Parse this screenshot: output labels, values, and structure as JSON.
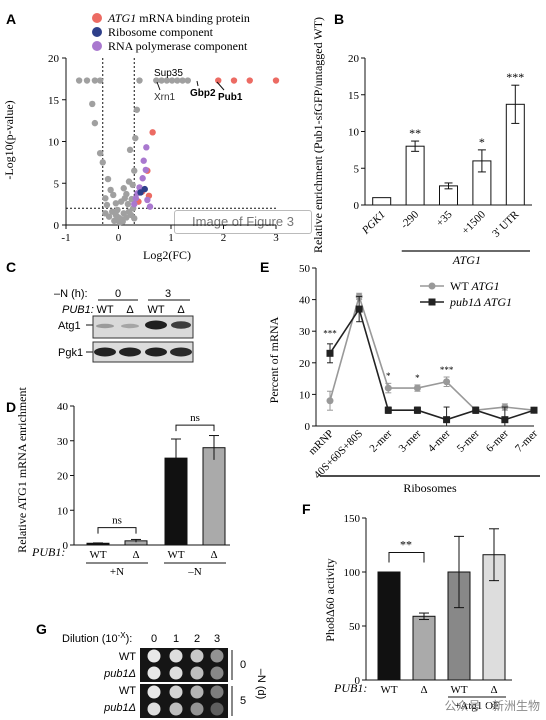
{
  "panels": {
    "A": "A",
    "B": "B",
    "C": "C",
    "D": "D",
    "E": "E",
    "F": "F",
    "G": "G"
  },
  "panel_a": {
    "legend": [
      {
        "italic": "ATG1",
        "text": " mRNA binding protein",
        "color": "#ec6b63"
      },
      {
        "italic": "",
        "text": "Ribosome component",
        "color": "#2e3f8a"
      },
      {
        "italic": "",
        "text": "RNA polymerase component",
        "color": "#a978cf"
      }
    ],
    "ylabel": "-Log10(p-value)",
    "xlabel": "Log2(FC)",
    "overlay": "Image of Figure 3",
    "annotations": [
      "Sup35",
      "Xrn1",
      "Gbp2",
      "Pub1"
    ]
  },
  "chart_data": [
    {
      "id": "A",
      "type": "scatter",
      "xlabel": "Log2(FC)",
      "ylabel": "-Log10(p-value)",
      "xlim": [
        -1,
        3
      ],
      "ylim": [
        0,
        20
      ],
      "xticks": [
        -1,
        0,
        1,
        2,
        3
      ],
      "yticks": [
        0,
        5,
        10,
        15,
        20
      ],
      "threshold_lines": {
        "x": [
          -0.3,
          0.3
        ],
        "y": [
          2
        ]
      },
      "series": [
        {
          "name": "ATG1 mRNA binding protein",
          "color": "#ec6b63",
          "points": [
            [
              1.9,
              17.3
            ],
            [
              2.2,
              17.3
            ],
            [
              2.5,
              17.3
            ],
            [
              3.0,
              17.3
            ],
            [
              0.65,
              11.1
            ],
            [
              0.55,
              6.5
            ],
            [
              0.45,
              4.0
            ],
            [
              0.58,
              3.5
            ],
            [
              0.38,
              2.8
            ]
          ]
        },
        {
          "name": "Ribosome component",
          "color": "#2e3f8a",
          "points": [
            [
              0.42,
              3.9
            ],
            [
              0.5,
              4.3
            ]
          ]
        },
        {
          "name": "RNA polymerase component",
          "color": "#a978cf",
          "points": [
            [
              0.53,
              9.3
            ],
            [
              0.48,
              7.7
            ],
            [
              0.52,
              6.6
            ],
            [
              0.46,
              5.6
            ],
            [
              0.4,
              4.5
            ],
            [
              0.36,
              3.8
            ],
            [
              0.33,
              3.2
            ],
            [
              0.55,
              3.0
            ],
            [
              0.3,
              2.5
            ],
            [
              0.6,
              2.2
            ]
          ]
        },
        {
          "name": "",
          "color": "#a0a0a0",
          "points": [
            [
              -0.75,
              17.3
            ],
            [
              -0.6,
              17.3
            ],
            [
              -0.45,
              17.3
            ],
            [
              -0.35,
              17.3
            ],
            [
              0.4,
              17.3
            ],
            [
              0.72,
              17.3
            ],
            [
              0.82,
              17.3
            ],
            [
              0.92,
              17.3
            ],
            [
              1.02,
              17.3
            ],
            [
              1.12,
              17.3
            ],
            [
              1.22,
              17.3
            ],
            [
              1.32,
              17.3
            ],
            [
              -0.5,
              14.5
            ],
            [
              -0.45,
              12.2
            ],
            [
              -0.35,
              8.6
            ],
            [
              -0.3,
              7.5
            ],
            [
              -0.2,
              5.5
            ],
            [
              0.22,
              9.0
            ],
            [
              0.3,
              6.5
            ],
            [
              0.35,
              13.8
            ],
            [
              0.32,
              10.4
            ],
            [
              -0.15,
              4.2
            ],
            [
              -0.1,
              3.6
            ],
            [
              0.1,
              4.4
            ],
            [
              0.15,
              3.7
            ],
            [
              0.2,
              5.2
            ],
            [
              0.27,
              4.8
            ],
            [
              0.05,
              2.8
            ],
            [
              -0.05,
              2.6
            ],
            [
              0.25,
              3.1
            ],
            [
              -0.25,
              3.2
            ],
            [
              -0.22,
              2.4
            ],
            [
              0.18,
              2.5
            ],
            [
              0.12,
              3.2
            ],
            [
              0.28,
              2.0
            ],
            [
              -0.05,
              1.2
            ],
            [
              0.0,
              0.9
            ],
            [
              0.05,
              0.7
            ],
            [
              0.1,
              1.4
            ],
            [
              -0.12,
              1.6
            ],
            [
              0.15,
              0.9
            ],
            [
              -0.18,
              1.0
            ],
            [
              0.2,
              1.6
            ],
            [
              -0.08,
              0.5
            ],
            [
              0.02,
              0.3
            ],
            [
              0.08,
              0.4
            ],
            [
              -0.02,
              1.8
            ],
            [
              0.24,
              1.2
            ],
            [
              -0.25,
              1.4
            ],
            [
              0.3,
              0.8
            ]
          ]
        }
      ]
    },
    {
      "id": "B",
      "type": "bar",
      "ylabel": "Relative enrichment (Pub1-sfGFP/untagged WT)",
      "categories": [
        "PGK1",
        "-290",
        "+35",
        "+1500",
        "3' UTR"
      ],
      "values": [
        1.0,
        8.0,
        2.6,
        6.0,
        13.7
      ],
      "errors": [
        0.0,
        0.7,
        0.4,
        1.5,
        2.6
      ],
      "significance": [
        "",
        "**",
        "",
        "*",
        "***"
      ],
      "group_label": "ATG1",
      "ylim": [
        0,
        20
      ],
      "yticks": [
        0,
        5,
        10,
        15,
        20
      ]
    },
    {
      "id": "D",
      "type": "bar",
      "ylabel": "Relative ATG1 mRNA enrichment",
      "categories": [
        "WT",
        "Δ",
        "WT",
        "Δ"
      ],
      "values": [
        0.5,
        1.2,
        25.0,
        28.0
      ],
      "errors": [
        0.1,
        0.4,
        5.5,
        3.5
      ],
      "colors": [
        "#111111",
        "#aaaaaa",
        "#111111",
        "#aaaaaa"
      ],
      "groups": [
        "+N",
        "–N"
      ],
      "significance": [
        "ns",
        "ns"
      ],
      "ylim": [
        0,
        40
      ],
      "yticks": [
        0,
        10,
        20,
        30,
        40
      ]
    },
    {
      "id": "E",
      "type": "line",
      "ylabel": "Percent of mRNA",
      "xlabel": "Ribosomes",
      "categories": [
        "mRNP",
        "40S+60S+80S",
        "2-mer",
        "3-mer",
        "4-mer",
        "5-mer",
        "6-mer",
        "7-mer"
      ],
      "series": [
        {
          "name": "WT ATG1",
          "color": "#999999",
          "marker": "circle",
          "values": [
            8,
            41,
            12,
            12,
            14,
            5,
            6,
            5
          ],
          "errors": [
            3,
            1,
            1.5,
            1,
            1.5,
            0.5,
            1,
            0.5
          ]
        },
        {
          "name": "pub1Δ ATG1",
          "color": "#222222",
          "marker": "square",
          "values": [
            23,
            37,
            5,
            5,
            2,
            5,
            2,
            5
          ],
          "errors": [
            3,
            4,
            1,
            1,
            4,
            1,
            4,
            0.5
          ]
        }
      ],
      "annotations": [
        "***",
        "*",
        "*",
        "***"
      ],
      "ylim": [
        0,
        50
      ],
      "yticks": [
        0,
        10,
        20,
        30,
        40,
        50
      ]
    },
    {
      "id": "F",
      "type": "bar",
      "ylabel": "Pho8Δ60 activity",
      "categories": [
        "WT",
        "Δ",
        "WT",
        "Δ"
      ],
      "values": [
        100,
        59,
        100,
        116
      ],
      "errors": [
        0,
        3,
        33,
        24
      ],
      "colors": [
        "#111111",
        "#aaaaaa",
        "#888888",
        "#dddddd"
      ],
      "significance": [
        "**"
      ],
      "group_label": "+Atg1 OE",
      "ylim": [
        0,
        150
      ],
      "yticks": [
        0,
        50,
        100,
        150
      ]
    }
  ],
  "panel_c": {
    "condition": "–N (h):",
    "times": [
      "0",
      "3"
    ],
    "genotype_label": "PUB1:",
    "lanes": [
      "WT",
      "Δ",
      "WT",
      "Δ"
    ],
    "rows": [
      "Atg1",
      "Pgk1"
    ]
  },
  "panel_d": {
    "genotype_label": "PUB1:",
    "sig": [
      "ns",
      "ns"
    ],
    "groups": [
      "+N",
      "–N"
    ]
  },
  "panel_e": {
    "legend": [
      {
        "name": "WT",
        "italic": "ATG1"
      },
      {
        "name": "pub1Δ",
        "italic": "ATG1"
      }
    ],
    "xlabel": "Ribosomes"
  },
  "panel_f": {
    "genotype_label": "PUB1:",
    "oe_label": "+Atg1 OE"
  },
  "panel_g": {
    "dilution_label": "Dilution (10",
    "dilution_exp": "-X",
    "dilution_close": "):",
    "dilutions": [
      "0",
      "1",
      "2",
      "3"
    ],
    "rows": [
      "WT",
      "pub1Δ",
      "WT",
      "pub1Δ"
    ],
    "time_points": [
      "0",
      "5"
    ],
    "side_label": "–N (d)"
  },
  "watermark": "公众号 · 新洲生物"
}
